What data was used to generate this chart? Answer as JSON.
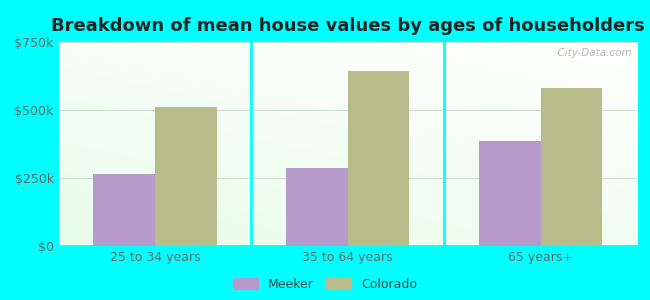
{
  "title": "Breakdown of mean house values by ages of householders",
  "categories": [
    "25 to 34 years",
    "35 to 64 years",
    "65 years+"
  ],
  "meeker_values": [
    265000,
    285000,
    385000
  ],
  "colorado_values": [
    510000,
    645000,
    580000
  ],
  "ylim": [
    0,
    750000
  ],
  "yticks": [
    0,
    250000,
    500000,
    750000
  ],
  "ytick_labels": [
    "$0",
    "$250k",
    "$500k",
    "$750k"
  ],
  "meeker_color": "#b899cc",
  "colorado_color": "#b8bc8a",
  "background_color": "#00ffff",
  "title_fontsize": 13,
  "tick_fontsize": 9,
  "legend_fontsize": 9,
  "bar_width": 0.32,
  "watermark_text": "  City-Data.com"
}
